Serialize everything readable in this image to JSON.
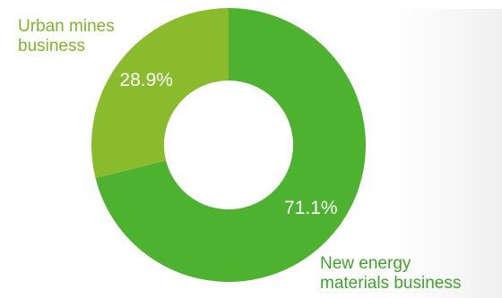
{
  "chart_data": {
    "type": "pie",
    "donut": true,
    "title": "",
    "categories": [
      "Urban mines business",
      "New energy materials business"
    ],
    "label_lines": [
      [
        "Urban mines",
        "business"
      ],
      [
        "New energy",
        "materials business"
      ]
    ],
    "values": [
      28.9,
      71.1
    ],
    "value_labels": [
      "28.9%",
      "71.1%"
    ],
    "colors": [
      "#8ABB2D",
      "#4DB22F"
    ],
    "label_colors": [
      "#7FB52A",
      "#3FA42B"
    ],
    "legend": "none"
  }
}
